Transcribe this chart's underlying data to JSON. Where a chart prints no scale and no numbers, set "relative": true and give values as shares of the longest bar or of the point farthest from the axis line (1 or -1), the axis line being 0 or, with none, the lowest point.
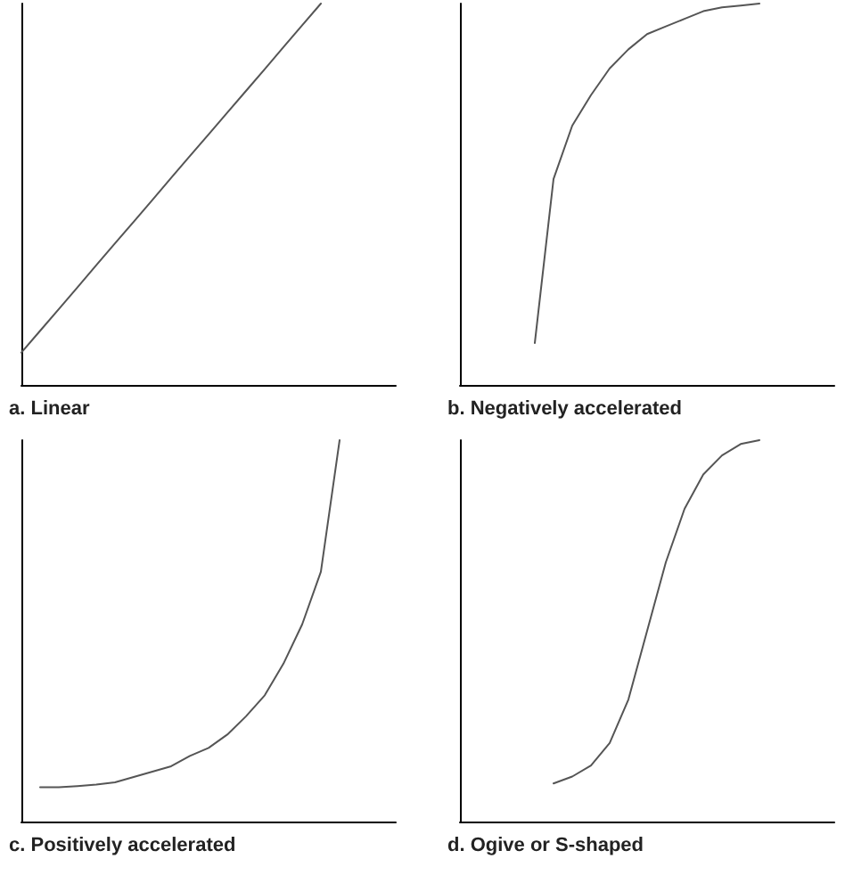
{
  "chart_data": [
    {
      "type": "line",
      "title": "a. Linear",
      "relative": true,
      "color": "#555555",
      "categories": [
        null,
        null,
        null,
        null,
        null,
        null,
        null,
        null,
        null,
        null,
        null,
        null,
        null,
        null,
        null,
        null,
        null,
        null,
        null,
        null,
        null
      ],
      "values": [
        0.085,
        0.142,
        0.199,
        0.256,
        0.314,
        0.371,
        0.428,
        0.485,
        0.543,
        0.6,
        0.657,
        0.714,
        0.771,
        0.828,
        0.886,
        0.943,
        1,
        null,
        null,
        null,
        null
      ]
    },
    {
      "type": "line",
      "title": "b. Negatively accelerated",
      "relative": true,
      "color": "#555555",
      "categories": [
        null,
        null,
        null,
        null,
        null,
        null,
        null,
        null,
        null,
        null,
        null,
        null,
        null,
        null,
        null,
        null,
        null,
        null,
        null,
        null,
        null
      ],
      "values": [
        null,
        null,
        null,
        null,
        0.11,
        0.54,
        0.68,
        0.76,
        0.83,
        0.88,
        0.92,
        0.94,
        0.96,
        0.98,
        0.99,
        0.995,
        1,
        null,
        null,
        null,
        null
      ]
    },
    {
      "type": "line",
      "title": "c. Positively accelerated",
      "relative": true,
      "color": "#555555",
      "categories": [
        null,
        null,
        null,
        null,
        null,
        null,
        null,
        null,
        null,
        null,
        null,
        null,
        null,
        null,
        null,
        null,
        null,
        null,
        null,
        null,
        null
      ],
      "values": [
        null,
        0.09,
        0.09,
        0.093,
        0.097,
        0.103,
        0.117,
        0.131,
        0.145,
        0.172,
        0.193,
        0.228,
        0.276,
        0.331,
        0.414,
        0.517,
        0.655,
        1,
        null,
        null,
        null
      ]
    },
    {
      "type": "line",
      "title": "d. Ogive or S-shaped",
      "relative": true,
      "color": "#555555",
      "categories": [
        null,
        null,
        null,
        null,
        null,
        null,
        null,
        null,
        null,
        null,
        null,
        null,
        null,
        null,
        null,
        null,
        null,
        null,
        null,
        null,
        null
      ],
      "values": [
        null,
        null,
        null,
        null,
        null,
        0.1,
        0.118,
        0.147,
        0.206,
        0.32,
        0.5,
        0.68,
        0.82,
        0.91,
        0.96,
        0.99,
        1,
        null,
        null,
        null,
        null
      ]
    }
  ]
}
